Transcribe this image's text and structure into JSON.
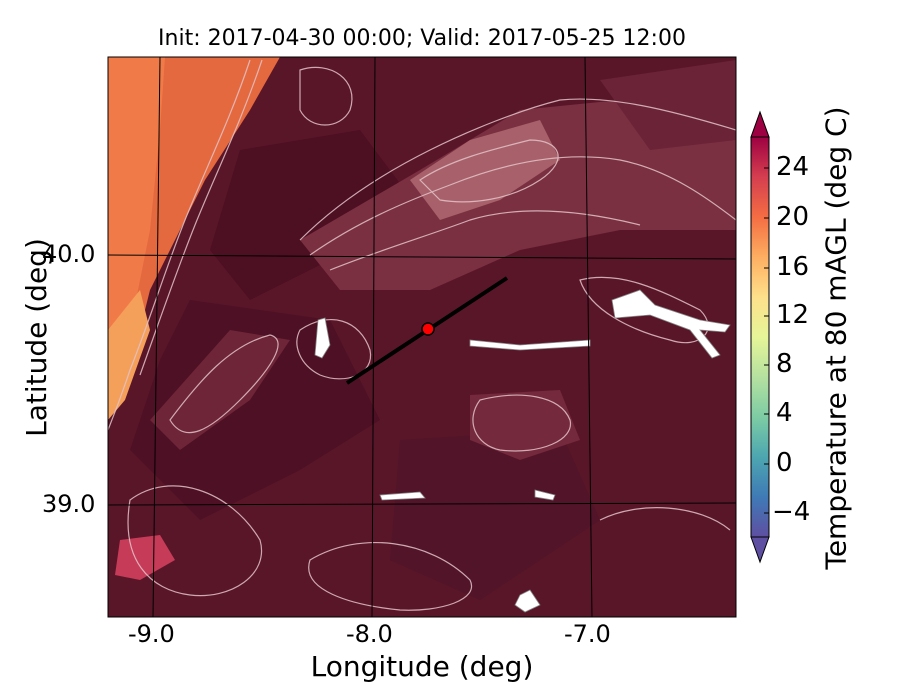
{
  "title": "Init: 2017-04-30 00:00; Valid: 2017-05-25 12:00",
  "axes": {
    "xlabel": "Longitude (deg)",
    "ylabel": "Latitude (deg)",
    "xticks": [
      "-9.0",
      "-8.0",
      "-7.0"
    ],
    "yticks": [
      "40.0",
      "39.0"
    ]
  },
  "colorbar": {
    "label": "Temperature at 80 mAGL (deg C)",
    "ticks": [
      "24",
      "20",
      "16",
      "12",
      "8",
      "4",
      "0",
      "−4"
    ],
    "min": -6,
    "max": 26,
    "extend": "both",
    "colormap": "Spectral_r",
    "colors": [
      "#5e4fa2",
      "#3f7ab6",
      "#4da6b0",
      "#7dcca4",
      "#b5e1a0",
      "#e6f598",
      "#fee08b",
      "#fdae61",
      "#f46d43",
      "#d53e4f",
      "#9e0142"
    ]
  },
  "map": {
    "background_color": "#5a1629",
    "marker": {
      "lon": -7.75,
      "lat": 39.7,
      "color": "#ff0000"
    },
    "transect": {
      "start": [
        -8.12,
        39.48
      ],
      "end": [
        -7.37,
        39.9
      ],
      "color": "#000000"
    }
  }
}
